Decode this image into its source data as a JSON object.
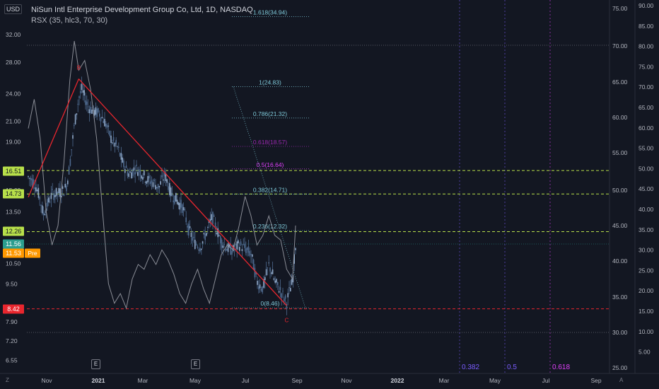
{
  "header": {
    "title": "NiSun Intl Enterprise Development Group Co, Ltd, 1D, NASDAQ",
    "indicator": "RSX (35, hlc3, 70, 30)",
    "currency": "USD"
  },
  "bottom_markers": {
    "left": "Z",
    "right": "A"
  },
  "earnings_badges": [
    {
      "label": "E",
      "x_index": 0
    },
    {
      "label": "E",
      "x_index": 1
    }
  ],
  "colors": {
    "background": "#131722",
    "candle": "#4e6a8f",
    "rsx_line": "#8a8d96",
    "wave_line": "#e8262e",
    "fib_text": "#7ec8d8",
    "fib_purple": "#9c27b0",
    "green_dash": "#b8e04a",
    "red_dash": "#e8262e"
  },
  "chart_data": {
    "type": "line",
    "x_ticks": [
      "Nov",
      "2021",
      "Mar",
      "May",
      "Jul",
      "Sep",
      "Nov",
      "2022",
      "Mar",
      "May",
      "Jul",
      "Sep"
    ],
    "y_left_ticks": [
      "32.00",
      "28.00",
      "24.00",
      "21.00",
      "19.00",
      "15.00",
      "13.50",
      "10.50",
      "9.50",
      "7.90",
      "7.20",
      "6.55"
    ],
    "y_right_ticks_price": [
      "75.00",
      "70.00",
      "65.00",
      "60.00",
      "55.00",
      "50.00",
      "45.00",
      "40.00",
      "35.00",
      "30.00",
      "25.00"
    ],
    "y_right_ticks_rsx": [
      "90.00",
      "85.00",
      "80.00",
      "75.00",
      "70.00",
      "65.00",
      "60.00",
      "55.00",
      "50.00",
      "45.00",
      "40.00",
      "35.00",
      "30.00",
      "25.00",
      "20.00",
      "15.00",
      "10.00",
      "5.00"
    ],
    "price_labels": [
      {
        "value": "16.51",
        "color": "#b8e04a",
        "text_color": "#131722"
      },
      {
        "value": "14.73",
        "color": "#b8e04a",
        "text_color": "#131722"
      },
      {
        "value": "12.26",
        "color": "#b8e04a",
        "text_color": "#131722"
      },
      {
        "value": "11.56",
        "color": "#2b9e8f",
        "text_color": "#ffffff"
      },
      {
        "value": "11.53",
        "color": "#ff9800",
        "text_color": "#ffffff",
        "tag": "Pre"
      },
      {
        "value": "8.42",
        "color": "#e8262e",
        "text_color": "#ffffff"
      }
    ],
    "fib_levels": [
      {
        "label": "1.618(34.94)",
        "color": "#7ec8d8"
      },
      {
        "label": "1(24.83)",
        "color": "#7ec8d8"
      },
      {
        "label": "0.786(21.32)",
        "color": "#7ec8d8"
      },
      {
        "label": "0.618(18.57)",
        "color": "#9c27b0"
      },
      {
        "label": "0.5(16.64)",
        "color": "#e040fb"
      },
      {
        "label": "0.382(14.71)",
        "color": "#7ec8d8"
      },
      {
        "label": "0.236(12.32)",
        "color": "#7ec8d8"
      },
      {
        "label": "0(8.46)",
        "color": "#7ec8d8"
      }
    ],
    "time_fibs": [
      {
        "label": "0.382",
        "color": "#7b5cff"
      },
      {
        "label": "0.5",
        "color": "#7b5cff"
      },
      {
        "label": "0.618",
        "color": "#e040fb"
      }
    ],
    "wave_labels": [
      {
        "label": "B",
        "x": 0.17,
        "y": 27.0
      },
      {
        "label": "C",
        "x": 0.87,
        "y": 8.0
      }
    ],
    "wave_points": [
      {
        "t": 0.0,
        "price": 14.5
      },
      {
        "t": 0.17,
        "price": 25.8
      },
      {
        "t": 0.87,
        "price": 8.55
      }
    ],
    "price_series": [
      {
        "t": 0.0,
        "price": 16.0
      },
      {
        "t": 0.02,
        "price": 15.6
      },
      {
        "t": 0.04,
        "price": 14.4
      },
      {
        "t": 0.05,
        "price": 13.3
      },
      {
        "t": 0.06,
        "price": 13.8
      },
      {
        "t": 0.08,
        "price": 14.7
      },
      {
        "t": 0.1,
        "price": 14.8
      },
      {
        "t": 0.12,
        "price": 15.0
      },
      {
        "t": 0.13,
        "price": 15.4
      },
      {
        "t": 0.14,
        "price": 17.0
      },
      {
        "t": 0.155,
        "price": 20.5
      },
      {
        "t": 0.17,
        "price": 23.5
      },
      {
        "t": 0.18,
        "price": 24.5
      },
      {
        "t": 0.19,
        "price": 23.6
      },
      {
        "t": 0.2,
        "price": 22.6
      },
      {
        "t": 0.22,
        "price": 22.0
      },
      {
        "t": 0.24,
        "price": 21.8
      },
      {
        "t": 0.26,
        "price": 20.8
      },
      {
        "t": 0.28,
        "price": 19.2
      },
      {
        "t": 0.3,
        "price": 18.5
      },
      {
        "t": 0.32,
        "price": 17.0
      },
      {
        "t": 0.34,
        "price": 16.2
      },
      {
        "t": 0.36,
        "price": 16.7
      },
      {
        "t": 0.38,
        "price": 16.4
      },
      {
        "t": 0.4,
        "price": 15.8
      },
      {
        "t": 0.42,
        "price": 15.6
      },
      {
        "t": 0.44,
        "price": 15.2
      },
      {
        "t": 0.46,
        "price": 16.2
      },
      {
        "t": 0.48,
        "price": 14.8
      },
      {
        "t": 0.5,
        "price": 14.3
      },
      {
        "t": 0.52,
        "price": 13.8
      },
      {
        "t": 0.54,
        "price": 12.4
      },
      {
        "t": 0.56,
        "price": 11.6
      },
      {
        "t": 0.58,
        "price": 11.4
      },
      {
        "t": 0.6,
        "price": 12.2
      },
      {
        "t": 0.62,
        "price": 13.2
      },
      {
        "t": 0.63,
        "price": 12.6
      },
      {
        "t": 0.65,
        "price": 11.7
      },
      {
        "t": 0.67,
        "price": 11.3
      },
      {
        "t": 0.69,
        "price": 11.2
      },
      {
        "t": 0.71,
        "price": 11.5
      },
      {
        "t": 0.73,
        "price": 11.3
      },
      {
        "t": 0.75,
        "price": 11.0
      },
      {
        "t": 0.77,
        "price": 9.6
      },
      {
        "t": 0.79,
        "price": 9.3
      },
      {
        "t": 0.81,
        "price": 10.4
      },
      {
        "t": 0.82,
        "price": 10.1
      },
      {
        "t": 0.83,
        "price": 9.6
      },
      {
        "t": 0.85,
        "price": 9.2
      },
      {
        "t": 0.86,
        "price": 8.9
      },
      {
        "t": 0.87,
        "price": 8.7
      },
      {
        "t": 0.88,
        "price": 9.2
      },
      {
        "t": 0.89,
        "price": 9.6
      },
      {
        "t": 0.9,
        "price": 11.5
      }
    ],
    "rsx_series": [
      {
        "t": 0.0,
        "v": 62
      },
      {
        "t": 0.02,
        "v": 68
      },
      {
        "t": 0.04,
        "v": 60
      },
      {
        "t": 0.06,
        "v": 45
      },
      {
        "t": 0.08,
        "v": 38
      },
      {
        "t": 0.1,
        "v": 42
      },
      {
        "t": 0.12,
        "v": 55
      },
      {
        "t": 0.14,
        "v": 72
      },
      {
        "t": 0.155,
        "v": 80
      },
      {
        "t": 0.17,
        "v": 74
      },
      {
        "t": 0.19,
        "v": 76
      },
      {
        "t": 0.21,
        "v": 70
      },
      {
        "t": 0.23,
        "v": 60
      },
      {
        "t": 0.25,
        "v": 45
      },
      {
        "t": 0.27,
        "v": 30
      },
      {
        "t": 0.29,
        "v": 26
      },
      {
        "t": 0.31,
        "v": 28
      },
      {
        "t": 0.33,
        "v": 25
      },
      {
        "t": 0.35,
        "v": 31
      },
      {
        "t": 0.37,
        "v": 34
      },
      {
        "t": 0.39,
        "v": 33
      },
      {
        "t": 0.41,
        "v": 36
      },
      {
        "t": 0.43,
        "v": 34
      },
      {
        "t": 0.45,
        "v": 37
      },
      {
        "t": 0.47,
        "v": 35
      },
      {
        "t": 0.49,
        "v": 32
      },
      {
        "t": 0.51,
        "v": 28
      },
      {
        "t": 0.53,
        "v": 26
      },
      {
        "t": 0.55,
        "v": 30
      },
      {
        "t": 0.57,
        "v": 33
      },
      {
        "t": 0.59,
        "v": 29
      },
      {
        "t": 0.61,
        "v": 26
      },
      {
        "t": 0.63,
        "v": 31
      },
      {
        "t": 0.65,
        "v": 36
      },
      {
        "t": 0.67,
        "v": 38
      },
      {
        "t": 0.69,
        "v": 37
      },
      {
        "t": 0.71,
        "v": 42
      },
      {
        "t": 0.73,
        "v": 48
      },
      {
        "t": 0.75,
        "v": 44
      },
      {
        "t": 0.77,
        "v": 38
      },
      {
        "t": 0.79,
        "v": 40
      },
      {
        "t": 0.81,
        "v": 44
      },
      {
        "t": 0.83,
        "v": 40
      },
      {
        "t": 0.85,
        "v": 39
      },
      {
        "t": 0.87,
        "v": 33
      },
      {
        "t": 0.89,
        "v": 31
      },
      {
        "t": 0.9,
        "v": 42
      }
    ]
  }
}
